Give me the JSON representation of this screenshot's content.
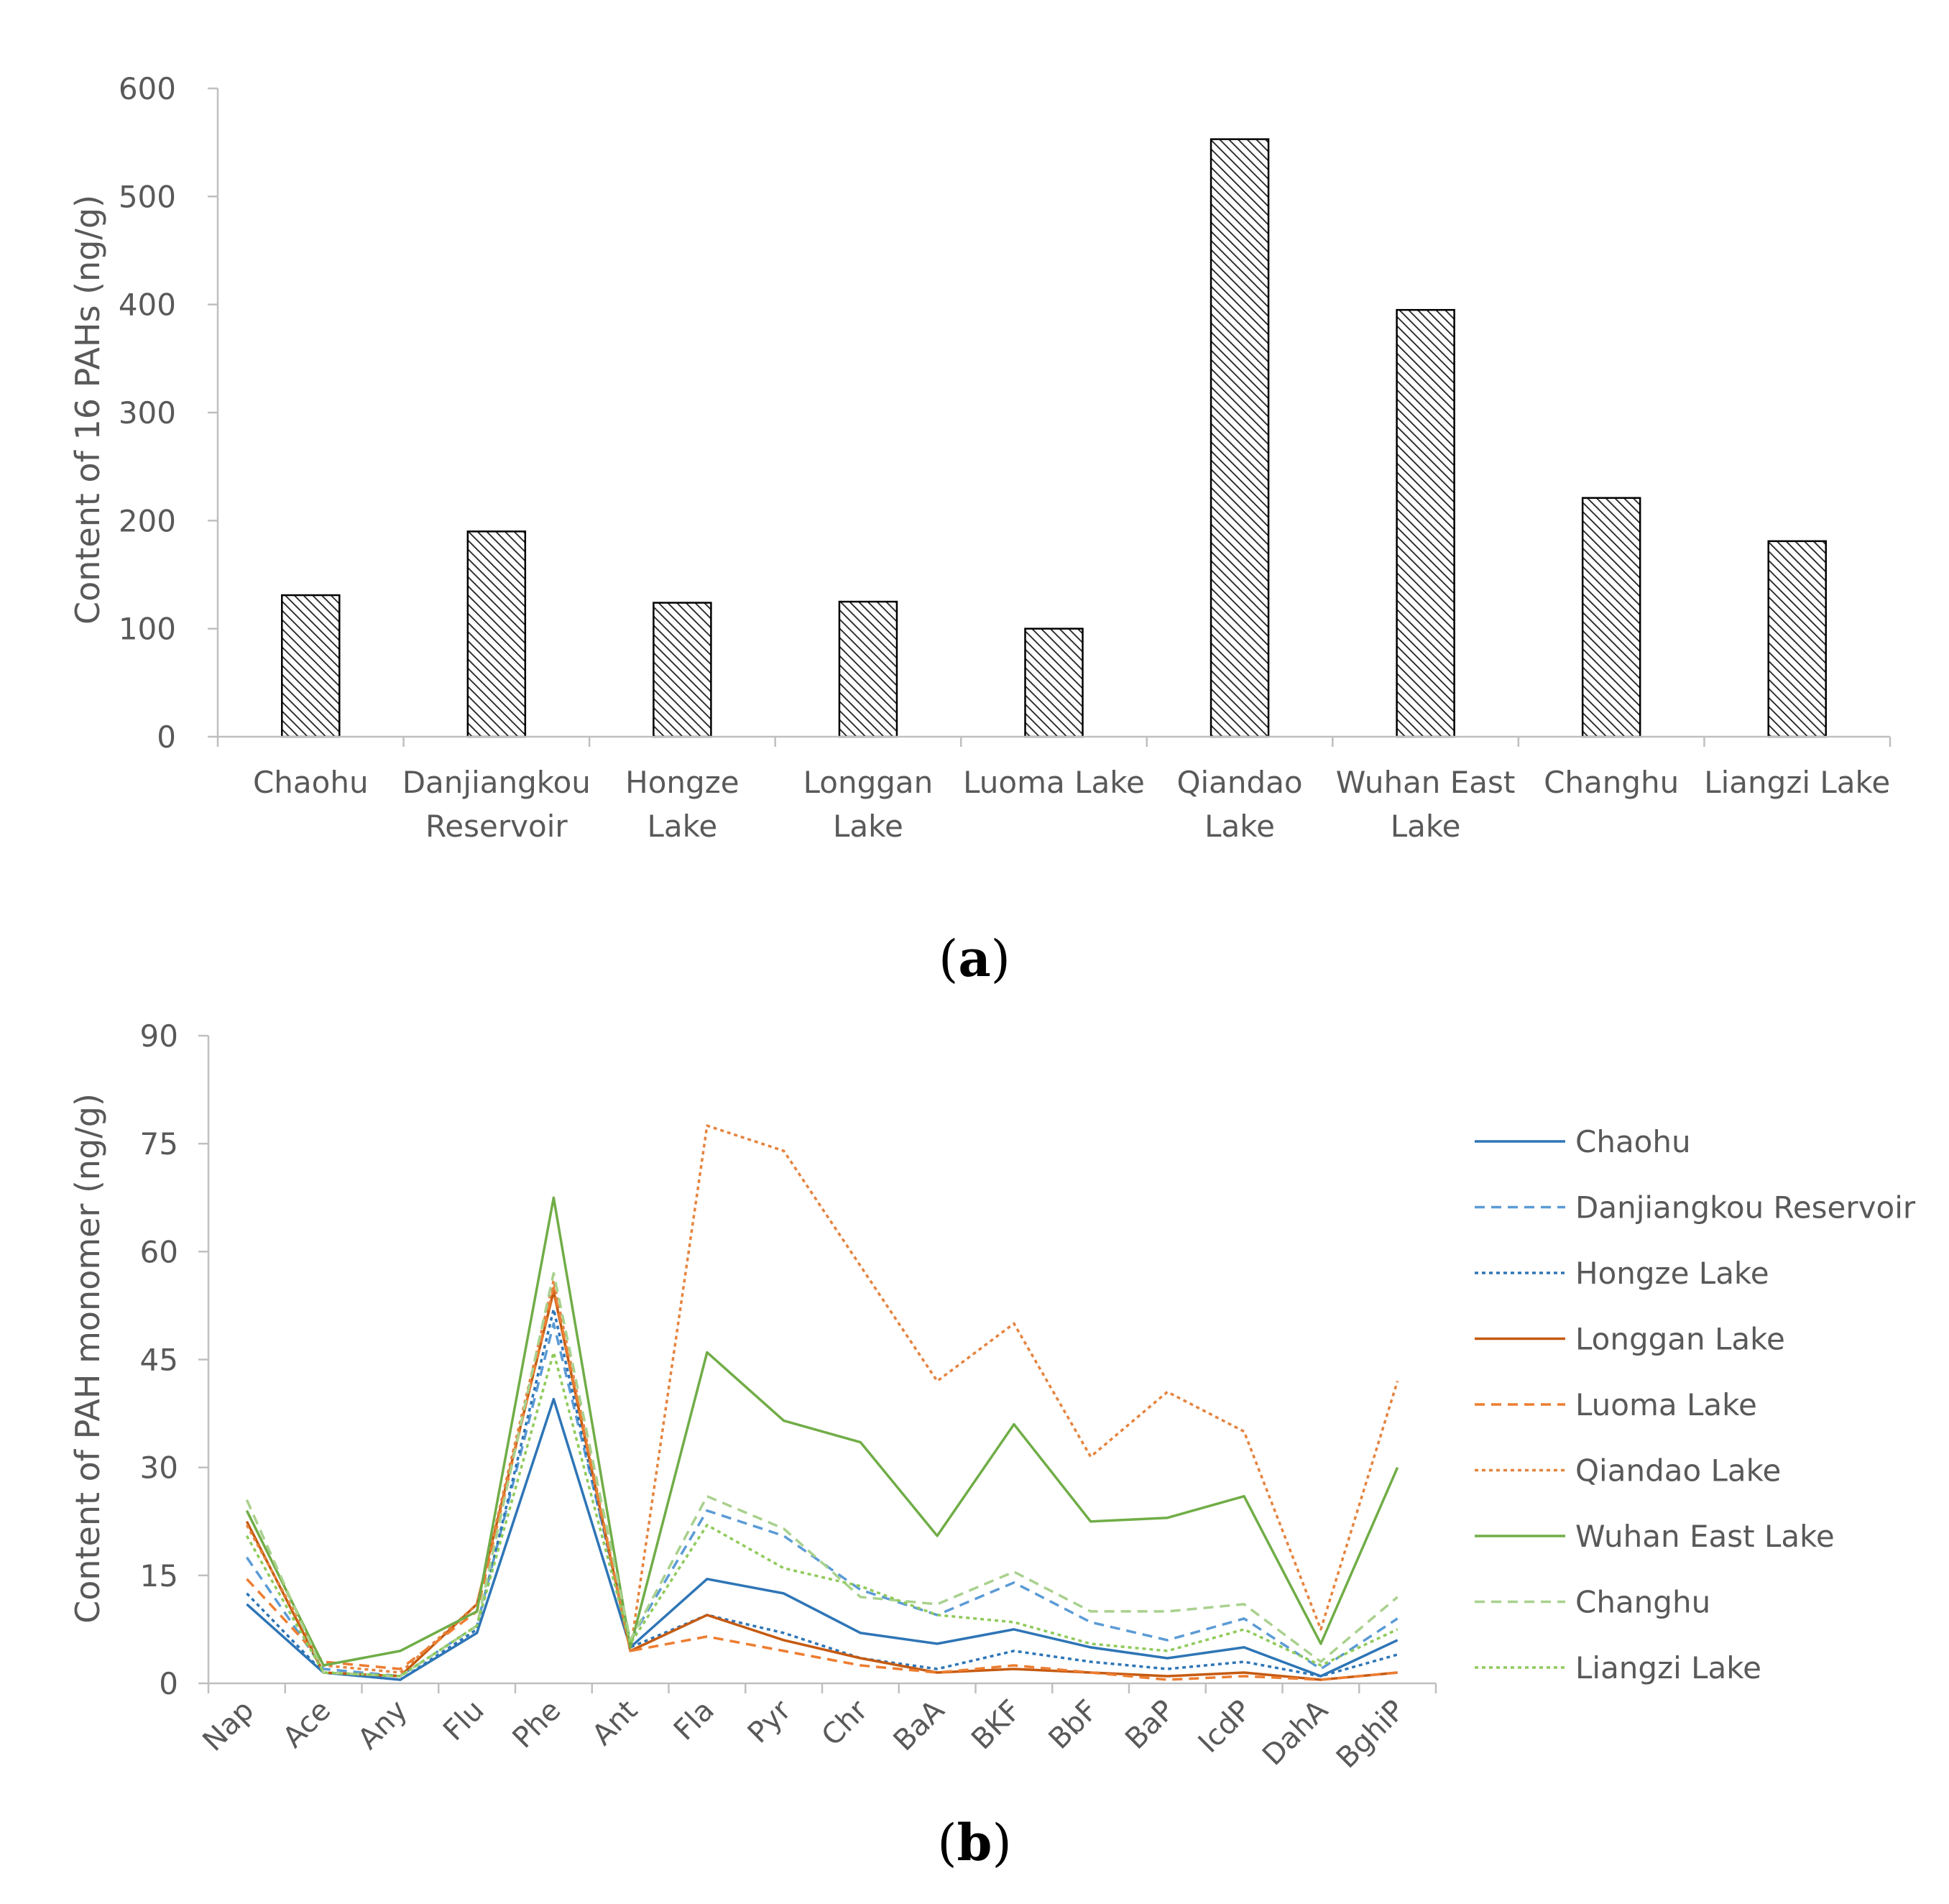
{
  "chart_data": [
    {
      "type": "bar",
      "panel_label": "a",
      "title": "",
      "xlabel": "",
      "ylabel": "Content of  16 PAHs (ng/g)",
      "ylim": [
        0,
        600
      ],
      "yticks": [
        0,
        100,
        200,
        300,
        400,
        500,
        600
      ],
      "grid": false,
      "legend": "none",
      "bar_fill": "diagonal-hatch",
      "categories": [
        [
          "Chaohu"
        ],
        [
          "Danjiangkou",
          "Reservoir"
        ],
        [
          "Hongze",
          "Lake"
        ],
        [
          "Longgan",
          "Lake"
        ],
        [
          "Luoma Lake"
        ],
        [
          "Qiandao",
          "Lake"
        ],
        [
          "Wuhan East",
          "Lake"
        ],
        [
          "Changhu"
        ],
        [
          "Liangzi Lake"
        ]
      ],
      "values": [
        131,
        190,
        124,
        125,
        100,
        553,
        395,
        221,
        181
      ]
    },
    {
      "type": "line",
      "panel_label": "b",
      "title": "",
      "xlabel": "",
      "ylabel": "Content of PAH monomer (ng/g)",
      "ylim": [
        0,
        90
      ],
      "yticks": [
        0,
        15,
        30,
        45,
        60,
        75,
        90
      ],
      "grid": false,
      "legend": "right",
      "categories": [
        "Nap",
        "Ace",
        "Any",
        "Flu",
        "Phe",
        "Ant",
        "Fla",
        "Pyr",
        "Chr",
        "BaA",
        "BKF",
        "BbF",
        "BaP",
        "IcdP",
        "DahA",
        "BghiP"
      ],
      "series": [
        {
          "name": "Chaohu",
          "color": "#2e75b6",
          "dash": "solid",
          "values": [
            11,
            1.5,
            0.5,
            7,
            39.5,
            5,
            14.5,
            12.5,
            7,
            5.5,
            7.5,
            5,
            3.5,
            5,
            1,
            6
          ]
        },
        {
          "name": "Danjiangkou Reservoir",
          "color": "#5b9bd5",
          "dash": "dashed",
          "values": [
            17.5,
            2,
            1,
            8,
            50,
            6,
            24,
            20.5,
            13,
            9.5,
            14,
            8.5,
            6,
            9,
            2,
            9
          ]
        },
        {
          "name": "Hongze Lake",
          "color": "#2e75b6",
          "dash": "dotted",
          "values": [
            12.5,
            1.5,
            0.5,
            7.5,
            52,
            5,
            9.5,
            7,
            3.5,
            2,
            4.5,
            3,
            2,
            3,
            1,
            4
          ]
        },
        {
          "name": "Longgan Lake",
          "color": "#c55a11",
          "dash": "solid",
          "values": [
            22.5,
            1.5,
            1,
            11,
            54.5,
            4.5,
            9.5,
            6,
            3.5,
            1.5,
            2,
            1.5,
            1,
            1.5,
            0.5,
            1.5
          ]
        },
        {
          "name": "Luoma Lake",
          "color": "#ed7d31",
          "dash": "dashed",
          "values": [
            14.5,
            3,
            2,
            10,
            55,
            4.5,
            6.5,
            4.5,
            2.5,
            1.5,
            2.5,
            1.5,
            0.5,
            1,
            0.5,
            1.5
          ]
        },
        {
          "name": "Qiandao Lake",
          "color": "#e5833e",
          "dash": "dotted",
          "values": [
            22,
            2.5,
            1.5,
            11,
            56,
            4.5,
            77.5,
            74,
            58,
            42,
            50,
            31.5,
            40.5,
            35,
            7.5,
            42
          ]
        },
        {
          "name": "Wuhan East Lake",
          "color": "#70ad47",
          "dash": "solid",
          "values": [
            24,
            2.5,
            4.5,
            10,
            67.5,
            5,
            46,
            36.5,
            33.5,
            20.5,
            36,
            22.5,
            23,
            26,
            5.5,
            30
          ]
        },
        {
          "name": "Changhu",
          "color": "#a9d18e",
          "dash": "dashed",
          "values": [
            25.5,
            1.5,
            1,
            8,
            57,
            6,
            26,
            21.5,
            12,
            11,
            15.5,
            10,
            10,
            11,
            3,
            12
          ]
        },
        {
          "name": "Liangzi Lake",
          "color": "#8fca5a",
          "dash": "dotted",
          "values": [
            20.5,
            1.5,
            1,
            8,
            46,
            5.5,
            22,
            16,
            13.5,
            9.5,
            8.5,
            5.5,
            4.5,
            7.5,
            2.5,
            7.5
          ]
        }
      ]
    }
  ]
}
